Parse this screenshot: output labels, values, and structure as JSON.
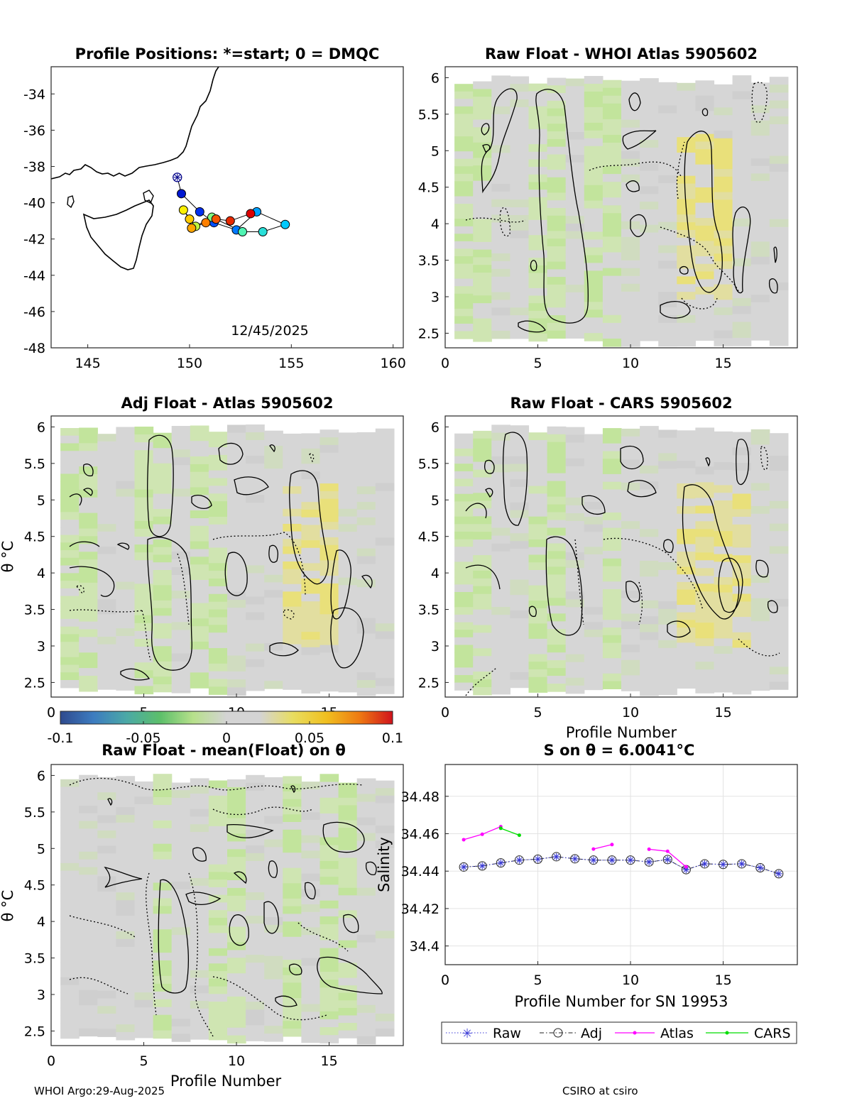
{
  "figure": {
    "footer_left": "WHOI Argo:29-Aug-2025",
    "footer_right": "CSIRO at csiro"
  },
  "colors": {
    "colormap_stops": [
      "#2f4a8e",
      "#3d7cc0",
      "#4ba9a6",
      "#5cbf6a",
      "#b7e08b",
      "#d4d4d4",
      "#d4d4d4",
      "#e8dd60",
      "#f0c020",
      "#ee7a12",
      "#d0131c"
    ],
    "background_cell": "#d6d6d6",
    "green_cell": "#c6e6a0",
    "yellow_cell": "#e6e08a",
    "raw": "#3a3ad6",
    "adj": "#222222",
    "atlas": "#ff00ff",
    "cars": "#00dd00"
  },
  "chart_data": [
    {
      "id": "map",
      "type": "scatter",
      "title": "Profile Positions: *=start; 0 = DMQC",
      "xlim": [
        143.2,
        160.5
      ],
      "ylim": [
        -48,
        -32.5
      ],
      "xticks": [
        145,
        150,
        155,
        160
      ],
      "yticks": [
        -34,
        -36,
        -38,
        -40,
        -42,
        -44,
        -46,
        -48
      ],
      "annotation": "12/45/2025",
      "positions": [
        {
          "lon": 149.4,
          "lat": -38.6
        },
        {
          "lon": 149.6,
          "lat": -39.5
        },
        {
          "lon": 150.5,
          "lat": -40.5
        },
        {
          "lon": 151.2,
          "lat": -41.1
        },
        {
          "lon": 152.3,
          "lat": -41.5
        },
        {
          "lon": 153.3,
          "lat": -40.5
        },
        {
          "lon": 154.7,
          "lat": -41.2
        },
        {
          "lon": 153.6,
          "lat": -41.6
        },
        {
          "lon": 152.6,
          "lat": -41.6
        },
        {
          "lon": 151.1,
          "lat": -40.8
        },
        {
          "lon": 150.3,
          "lat": -41.3
        },
        {
          "lon": 149.7,
          "lat": -40.4
        },
        {
          "lon": 150.0,
          "lat": -40.9
        },
        {
          "lon": 150.1,
          "lat": -41.4
        },
        {
          "lon": 150.8,
          "lat": -41.1
        },
        {
          "lon": 151.3,
          "lat": -40.9
        },
        {
          "lon": 152.0,
          "lat": -41.0
        },
        {
          "lon": 153.0,
          "lat": -40.6
        }
      ]
    },
    {
      "id": "whoi",
      "type": "heatmap",
      "title": "Raw Float - WHOI Atlas  5905602",
      "xlim": [
        0,
        19
      ],
      "ylim": [
        2.3,
        6.15
      ],
      "xticks": [
        0,
        5,
        10,
        15
      ],
      "yticks": [
        2.5,
        3,
        3.5,
        4,
        4.5,
        5,
        5.5,
        6
      ],
      "green_cols": [
        1,
        2,
        5,
        6,
        8,
        9
      ],
      "yellow_cols": [
        13,
        14,
        15
      ]
    },
    {
      "id": "adj",
      "type": "heatmap",
      "title": "Adj Float - Atlas  5905602",
      "ylabel": "θ °C",
      "xlim": [
        0,
        19
      ],
      "ylim": [
        2.3,
        6.15
      ],
      "xticks": [
        0,
        5,
        10,
        15
      ],
      "yticks": [
        2.5,
        3,
        3.5,
        4,
        4.5,
        5,
        5.5,
        6
      ],
      "green_cols": [
        1,
        2,
        5,
        6,
        8,
        9
      ],
      "yellow_cols": [
        13,
        14,
        15
      ]
    },
    {
      "id": "cars",
      "type": "heatmap",
      "title": "Raw Float - CARS  5905602",
      "xlabel": "Profile Number",
      "xlim": [
        0,
        19
      ],
      "ylim": [
        2.3,
        6.15
      ],
      "xticks": [
        0,
        5,
        10,
        15
      ],
      "yticks": [
        2.5,
        3,
        3.5,
        4,
        4.5,
        5,
        5.5,
        6
      ],
      "green_cols": [
        1,
        2,
        5,
        6,
        9
      ],
      "yellow_cols": [
        13,
        14,
        15,
        16
      ]
    },
    {
      "id": "colorbar",
      "type": "heatmap",
      "range": [
        -0.1,
        0.1
      ],
      "ticks": [
        "-0.1",
        "-0.05",
        "0",
        "0.05",
        "0.1"
      ]
    },
    {
      "id": "mean",
      "type": "heatmap",
      "title": "Raw Float - mean(Float) on θ",
      "xlabel": "Profile Number",
      "ylabel": "θ °C",
      "xlim": [
        0,
        19
      ],
      "ylim": [
        2.3,
        6.15
      ],
      "xticks": [
        0,
        5,
        10,
        15
      ],
      "yticks": [
        2.5,
        3,
        3.5,
        4,
        4.5,
        5,
        5.5,
        6
      ],
      "green_cols": [
        6,
        9,
        10,
        13,
        15,
        16
      ],
      "yellow_cols": []
    },
    {
      "id": "salinity",
      "type": "line",
      "title": "S on θ = 6.0041°C",
      "xlabel": "Profile Number for SN 19953",
      "ylabel": "Salinity",
      "xlim": [
        0,
        19
      ],
      "ylim": [
        34.39,
        34.497
      ],
      "xticks": [
        0,
        5,
        10,
        15
      ],
      "yticks": [
        34.4,
        34.42,
        34.44,
        34.46,
        34.48
      ],
      "x": [
        1,
        2,
        3,
        4,
        5,
        6,
        7,
        8,
        9,
        10,
        11,
        12,
        13,
        14,
        15,
        16,
        17,
        18
      ],
      "series": [
        {
          "name": "Raw",
          "values": [
            34.4422,
            34.4428,
            34.4444,
            34.4459,
            34.4464,
            34.4477,
            34.4466,
            34.4459,
            34.4459,
            34.4459,
            34.4449,
            34.4462,
            34.4408,
            34.4439,
            34.4436,
            34.4439,
            34.4418,
            34.4386
          ]
        },
        {
          "name": "Adj",
          "values": [
            34.4422,
            34.4428,
            34.4444,
            34.4459,
            34.4464,
            34.4477,
            34.4466,
            34.4459,
            34.4459,
            34.4459,
            34.4449,
            34.4462,
            34.4408,
            34.4439,
            34.4436,
            34.4439,
            34.4418,
            34.4386
          ]
        },
        {
          "name": "Atlas",
          "segments": [
            [
              [
                1,
                34.4568
              ],
              [
                2,
                34.4597
              ],
              [
                3,
                34.4638
              ]
            ],
            [
              [
                8,
                34.4518
              ],
              [
                9,
                34.4542
              ]
            ],
            [
              [
                11,
                34.4517
              ],
              [
                12,
                34.4506
              ],
              [
                13,
                34.4423
              ]
            ]
          ]
        },
        {
          "name": "CARS",
          "segments": [
            [
              [
                3,
                34.4629
              ],
              [
                4,
                34.4592
              ]
            ]
          ]
        }
      ],
      "legend": [
        "Raw",
        "Adj",
        "Atlas",
        "CARS"
      ]
    }
  ]
}
